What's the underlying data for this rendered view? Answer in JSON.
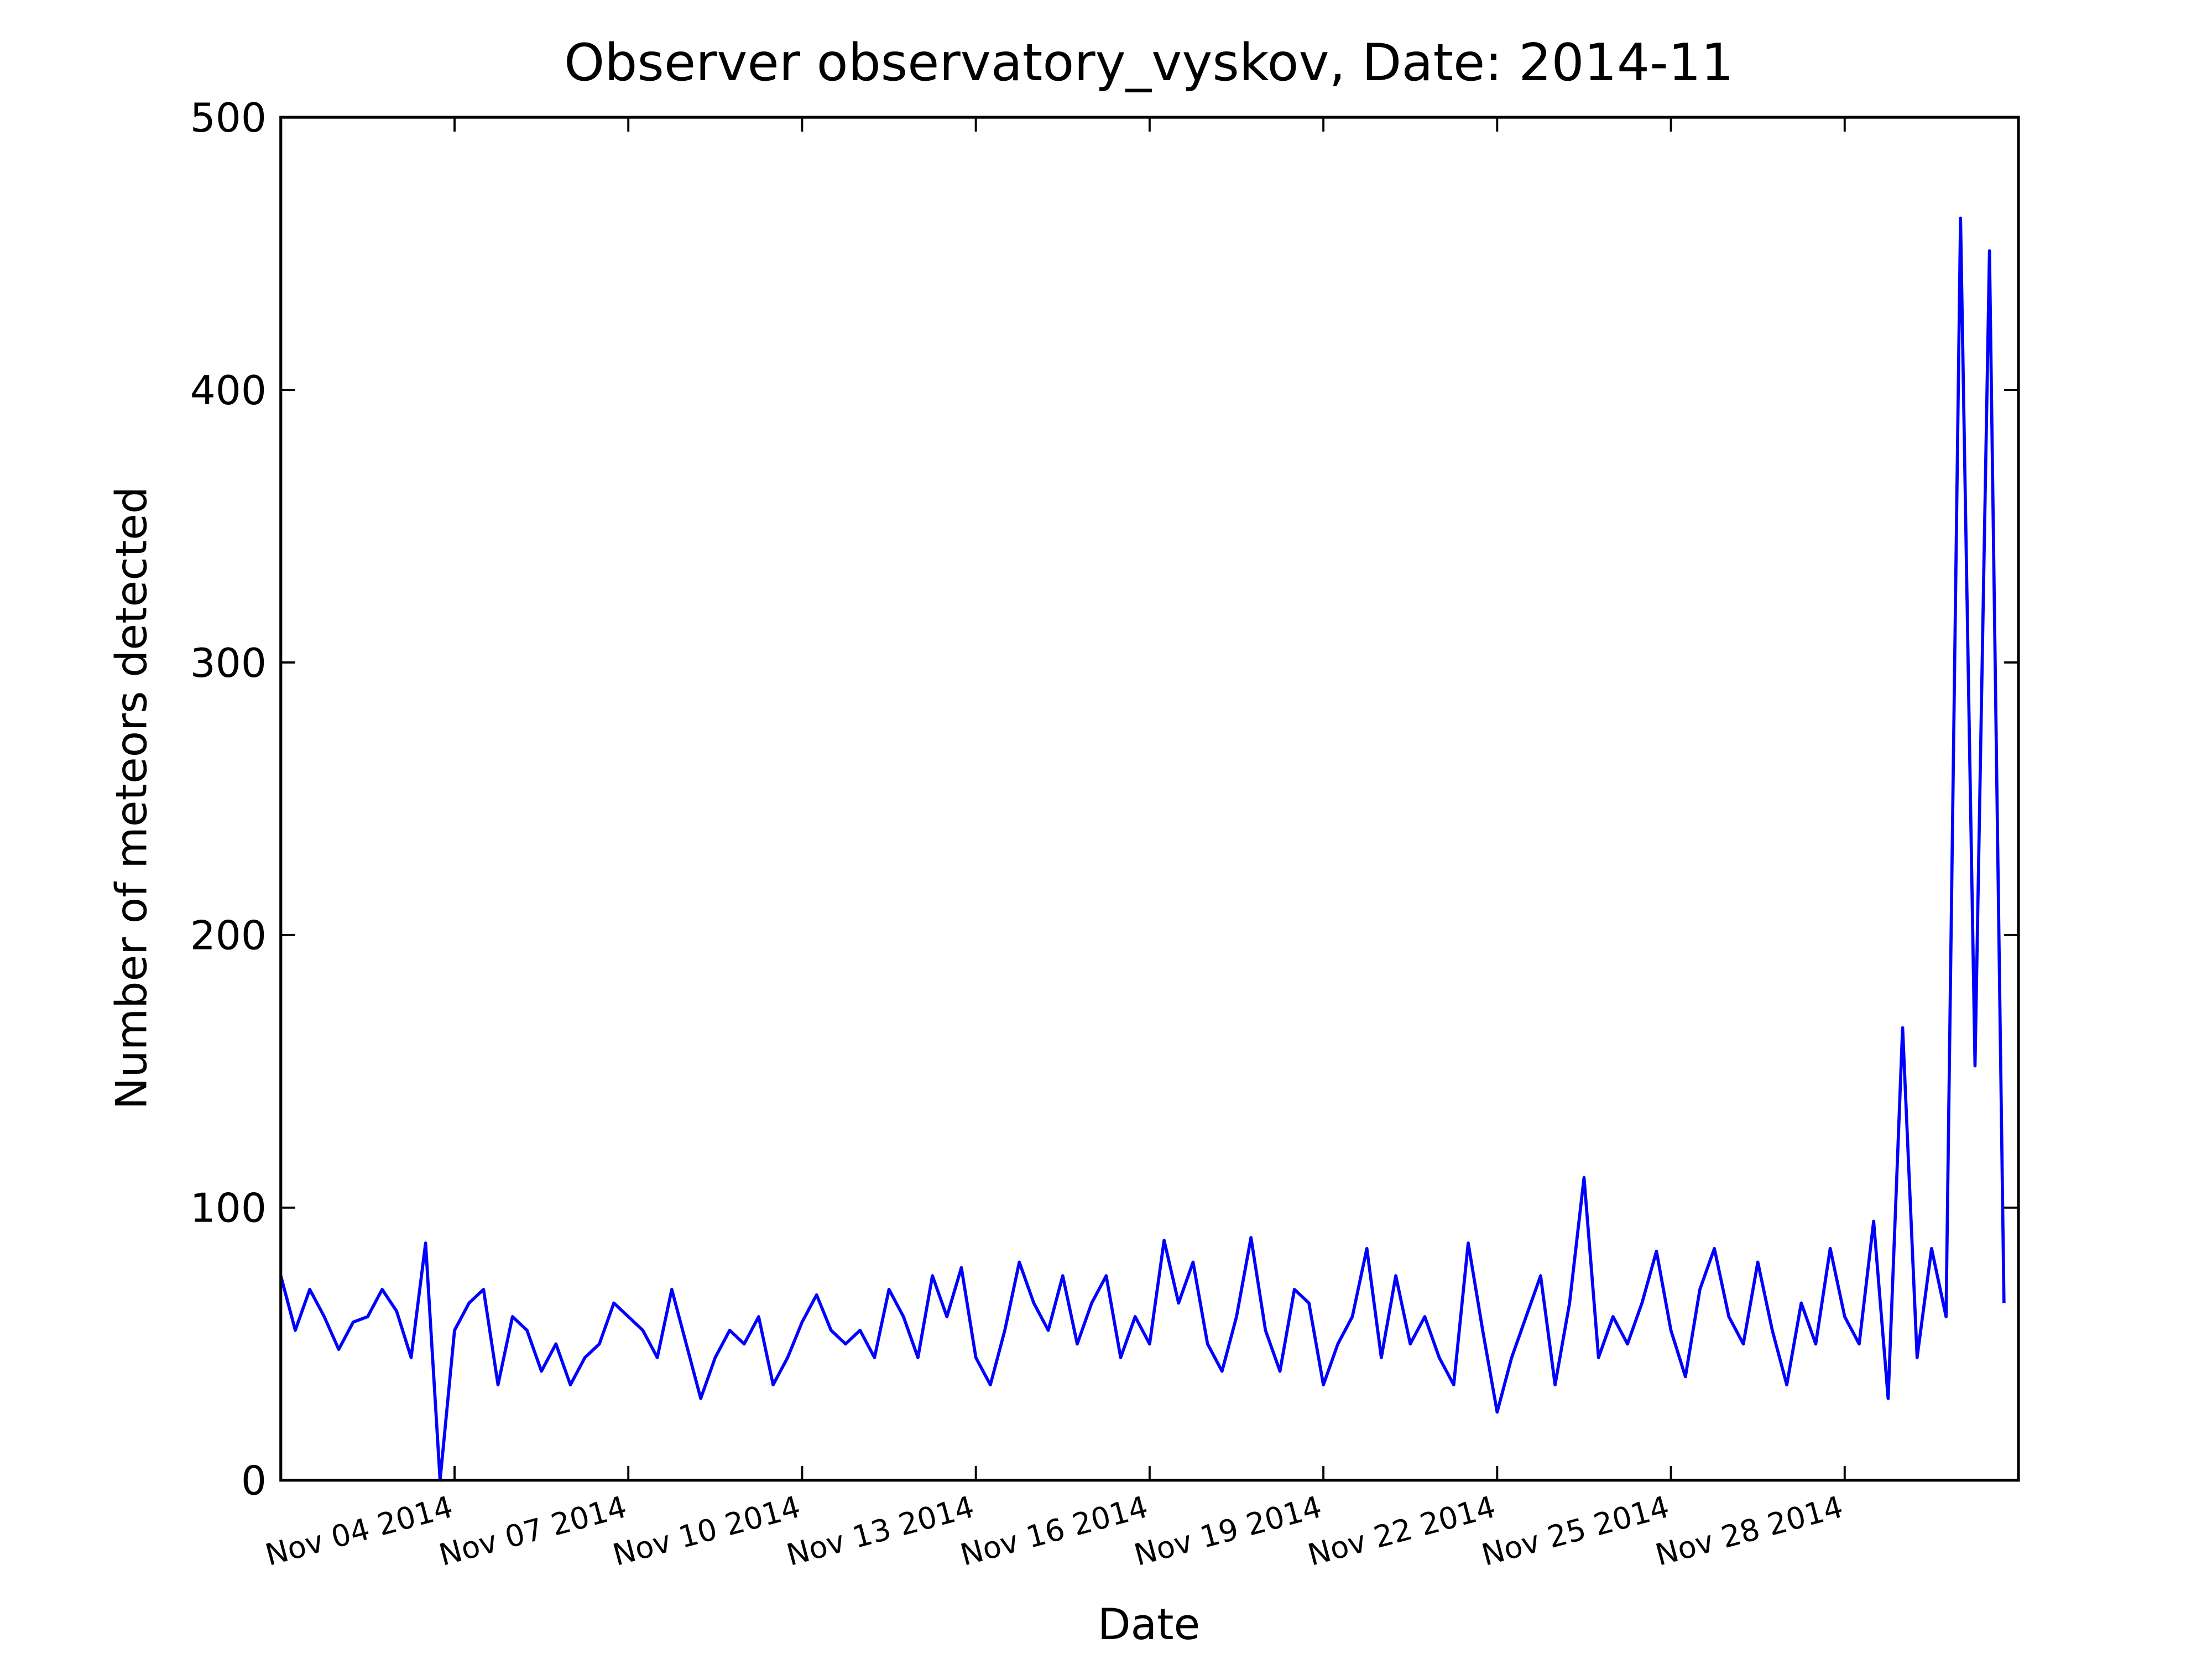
{
  "chart_data": {
    "type": "line",
    "title": "Observer observatory_vyskov, Date: 2014-11",
    "x_label": "Date",
    "y_label": "Number of meteors detected",
    "color": "#0000ff",
    "x": [
      1,
      1.25,
      1.5,
      1.75,
      2,
      2.25,
      2.5,
      2.75,
      3,
      3.25,
      3.5,
      3.75,
      4,
      4.25,
      4.5,
      4.75,
      5,
      5.25,
      5.5,
      5.75,
      6,
      6.25,
      6.5,
      6.75,
      7,
      7.25,
      7.5,
      7.75,
      8,
      8.25,
      8.5,
      8.75,
      9,
      9.25,
      9.5,
      9.75,
      10,
      10.25,
      10.5,
      10.75,
      11,
      11.25,
      11.5,
      11.75,
      12,
      12.25,
      12.5,
      12.75,
      13,
      13.25,
      13.5,
      13.75,
      14,
      14.25,
      14.5,
      14.75,
      15,
      15.25,
      15.5,
      15.75,
      16,
      16.25,
      16.5,
      16.75,
      17,
      17.25,
      17.5,
      17.75,
      18,
      18.25,
      18.5,
      18.75,
      19,
      19.25,
      19.5,
      19.75,
      20,
      20.25,
      20.5,
      20.75,
      21,
      21.25,
      21.5,
      21.75,
      22,
      22.25,
      22.5,
      22.75,
      23,
      23.25,
      23.5,
      23.75,
      24,
      24.25,
      24.5,
      24.75,
      25,
      25.25,
      25.5,
      25.75,
      26,
      26.25,
      26.5,
      26.75,
      27,
      27.25,
      27.5,
      27.75,
      28,
      28.25,
      28.5,
      28.75,
      29,
      29.25,
      29.5,
      29.75,
      30,
      30.25,
      30.5,
      30.75
    ],
    "values": [
      75,
      55,
      70,
      60,
      48,
      58,
      60,
      70,
      62,
      45,
      87,
      0,
      55,
      65,
      70,
      35,
      60,
      55,
      40,
      50,
      35,
      45,
      50,
      65,
      60,
      55,
      45,
      70,
      50,
      30,
      45,
      55,
      50,
      60,
      35,
      45,
      58,
      68,
      55,
      50,
      55,
      45,
      70,
      60,
      45,
      75,
      60,
      78,
      45,
      35,
      55,
      80,
      65,
      55,
      75,
      50,
      65,
      75,
      45,
      60,
      50,
      88,
      65,
      80,
      50,
      40,
      60,
      89,
      55,
      40,
      70,
      65,
      35,
      50,
      60,
      85,
      45,
      75,
      50,
      60,
      45,
      35,
      87,
      55,
      25,
      45,
      60,
      75,
      35,
      65,
      111,
      45,
      60,
      50,
      65,
      84,
      55,
      38,
      70,
      85,
      60,
      50,
      80,
      55,
      35,
      65,
      50,
      85,
      60,
      50,
      95,
      30,
      166,
      45,
      85,
      60,
      463,
      152,
      451,
      65
    ],
    "xlim": [
      1,
      31
    ],
    "xticks": [
      {
        "value": 4,
        "label": "Nov 04 2014"
      },
      {
        "value": 7,
        "label": "Nov 07 2014"
      },
      {
        "value": 10,
        "label": "Nov 10 2014"
      },
      {
        "value": 13,
        "label": "Nov 13 2014"
      },
      {
        "value": 16,
        "label": "Nov 16 2014"
      },
      {
        "value": 19,
        "label": "Nov 19 2014"
      },
      {
        "value": 22,
        "label": "Nov 22 2014"
      },
      {
        "value": 25,
        "label": "Nov 25 2014"
      },
      {
        "value": 28,
        "label": "Nov 28 2014"
      }
    ],
    "ylim": [
      0,
      500
    ],
    "yticks": [
      0,
      100,
      200,
      300,
      400,
      500
    ]
  }
}
